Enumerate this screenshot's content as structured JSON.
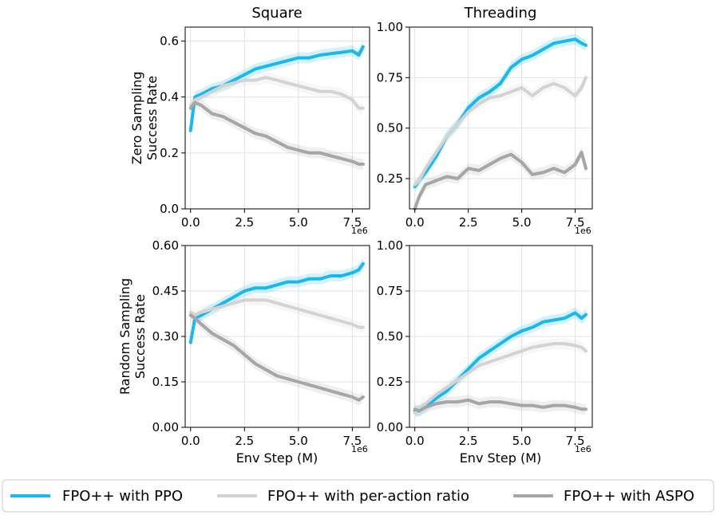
{
  "colors": {
    "ppo": "#18b8f0",
    "per_action": "#d3d3d3",
    "aspo": "#a6a6a6"
  },
  "chart_data": [
    {
      "id": "zero-square",
      "type": "line",
      "title": "Square",
      "ylabel": "Zero Sampling Success Rate",
      "xlabel": "",
      "x_offset_label": "1e6",
      "xlim": [
        -0.25,
        8.3
      ],
      "ylim": [
        0.0,
        0.65
      ],
      "xticks": [
        0.0,
        2.5,
        5.0,
        7.5
      ],
      "xtick_labels": [
        "0.0",
        "2.5",
        "5.0",
        "7.5"
      ],
      "yticks": [
        0.0,
        0.2,
        0.4,
        0.6
      ],
      "ytick_labels": [
        "0.0",
        "0.2",
        "0.4",
        "0.6"
      ],
      "x": [
        0.0,
        0.2,
        0.5,
        1.0,
        1.5,
        2.0,
        2.5,
        3.0,
        3.5,
        4.0,
        4.5,
        5.0,
        5.5,
        6.0,
        6.5,
        7.0,
        7.5,
        7.8,
        8.0
      ],
      "series": [
        {
          "name": "FPO++ with PPO",
          "values": [
            0.28,
            0.4,
            0.41,
            0.43,
            0.44,
            0.46,
            0.48,
            0.5,
            0.51,
            0.52,
            0.53,
            0.54,
            0.54,
            0.55,
            0.555,
            0.56,
            0.565,
            0.55,
            0.58
          ]
        },
        {
          "name": "FPO++ with per-action ratio",
          "values": [
            0.37,
            0.39,
            0.4,
            0.42,
            0.44,
            0.45,
            0.46,
            0.46,
            0.47,
            0.46,
            0.45,
            0.44,
            0.43,
            0.42,
            0.42,
            0.41,
            0.39,
            0.36,
            0.36
          ]
        },
        {
          "name": "FPO++ with ASPO",
          "values": [
            0.36,
            0.38,
            0.37,
            0.34,
            0.33,
            0.31,
            0.29,
            0.27,
            0.26,
            0.24,
            0.22,
            0.21,
            0.2,
            0.2,
            0.19,
            0.18,
            0.17,
            0.16,
            0.16
          ]
        }
      ]
    },
    {
      "id": "zero-threading",
      "type": "line",
      "title": "Threading",
      "ylabel": "",
      "xlabel": "",
      "x_offset_label": "1e6",
      "xlim": [
        -0.25,
        8.3
      ],
      "ylim": [
        0.1,
        1.0
      ],
      "xticks": [
        0.0,
        2.5,
        5.0,
        7.5
      ],
      "xtick_labels": [
        "0.0",
        "2.5",
        "5.0",
        "7.5"
      ],
      "yticks": [
        0.25,
        0.5,
        0.75,
        1.0
      ],
      "ytick_labels": [
        "0.25",
        "0.50",
        "0.75",
        "1.00"
      ],
      "x": [
        0.0,
        0.2,
        0.5,
        1.0,
        1.5,
        2.0,
        2.5,
        3.0,
        3.5,
        4.0,
        4.5,
        5.0,
        5.5,
        6.0,
        6.5,
        7.0,
        7.5,
        7.8,
        8.0
      ],
      "series": [
        {
          "name": "FPO++ with PPO",
          "values": [
            0.21,
            0.24,
            0.28,
            0.36,
            0.46,
            0.52,
            0.6,
            0.65,
            0.68,
            0.72,
            0.8,
            0.84,
            0.86,
            0.89,
            0.92,
            0.93,
            0.94,
            0.92,
            0.91
          ]
        },
        {
          "name": "FPO++ with per-action ratio",
          "values": [
            0.22,
            0.24,
            0.3,
            0.38,
            0.46,
            0.52,
            0.58,
            0.62,
            0.65,
            0.66,
            0.68,
            0.7,
            0.66,
            0.7,
            0.72,
            0.7,
            0.66,
            0.7,
            0.75
          ]
        },
        {
          "name": "FPO++ with ASPO",
          "values": [
            0.1,
            0.16,
            0.22,
            0.24,
            0.26,
            0.25,
            0.3,
            0.29,
            0.32,
            0.35,
            0.37,
            0.33,
            0.27,
            0.28,
            0.3,
            0.28,
            0.32,
            0.38,
            0.3
          ]
        }
      ]
    },
    {
      "id": "random-square",
      "type": "line",
      "title": "",
      "ylabel": "Random Sampling Success Rate",
      "xlabel": "Env Step (M)",
      "x_offset_label": "1e6",
      "xlim": [
        -0.25,
        8.3
      ],
      "ylim": [
        0.0,
        0.6
      ],
      "xticks": [
        0.0,
        2.5,
        5.0,
        7.5
      ],
      "xtick_labels": [
        "0.0",
        "2.5",
        "5.0",
        "7.5"
      ],
      "yticks": [
        0.0,
        0.15,
        0.3,
        0.45,
        0.6
      ],
      "ytick_labels": [
        "0.00",
        "0.15",
        "0.30",
        "0.45",
        "0.60"
      ],
      "x": [
        0.0,
        0.2,
        0.5,
        1.0,
        1.5,
        2.0,
        2.5,
        3.0,
        3.5,
        4.0,
        4.5,
        5.0,
        5.5,
        6.0,
        6.5,
        7.0,
        7.5,
        7.8,
        8.0
      ],
      "series": [
        {
          "name": "FPO++ with PPO",
          "values": [
            0.28,
            0.36,
            0.37,
            0.39,
            0.41,
            0.43,
            0.45,
            0.46,
            0.46,
            0.47,
            0.48,
            0.48,
            0.49,
            0.49,
            0.5,
            0.5,
            0.51,
            0.52,
            0.54
          ]
        },
        {
          "name": "FPO++ with per-action ratio",
          "values": [
            0.38,
            0.37,
            0.38,
            0.39,
            0.4,
            0.41,
            0.42,
            0.42,
            0.42,
            0.41,
            0.4,
            0.39,
            0.38,
            0.37,
            0.36,
            0.35,
            0.34,
            0.33,
            0.33
          ]
        },
        {
          "name": "FPO++ with ASPO",
          "values": [
            0.37,
            0.36,
            0.34,
            0.31,
            0.29,
            0.27,
            0.24,
            0.21,
            0.19,
            0.17,
            0.16,
            0.15,
            0.14,
            0.13,
            0.12,
            0.11,
            0.1,
            0.09,
            0.1
          ]
        }
      ]
    },
    {
      "id": "random-threading",
      "type": "line",
      "title": "",
      "ylabel": "",
      "xlabel": "Env Step (M)",
      "x_offset_label": "1e6",
      "xlim": [
        -0.25,
        8.3
      ],
      "ylim": [
        0.0,
        1.0
      ],
      "xticks": [
        0.0,
        2.5,
        5.0,
        7.5
      ],
      "xtick_labels": [
        "0.0",
        "2.5",
        "5.0",
        "7.5"
      ],
      "yticks": [
        0.0,
        0.25,
        0.5,
        0.75,
        1.0
      ],
      "ytick_labels": [
        "0.00",
        "0.25",
        "0.50",
        "0.75",
        "1.00"
      ],
      "x": [
        0.0,
        0.2,
        0.5,
        1.0,
        1.5,
        2.0,
        2.5,
        3.0,
        3.5,
        4.0,
        4.5,
        5.0,
        5.5,
        6.0,
        6.5,
        7.0,
        7.5,
        7.8,
        8.0
      ],
      "series": [
        {
          "name": "FPO++ with PPO",
          "values": [
            0.09,
            0.09,
            0.11,
            0.16,
            0.2,
            0.26,
            0.32,
            0.38,
            0.42,
            0.46,
            0.5,
            0.53,
            0.55,
            0.58,
            0.59,
            0.6,
            0.63,
            0.6,
            0.62
          ]
        },
        {
          "name": "FPO++ with per-action ratio",
          "values": [
            0.08,
            0.1,
            0.13,
            0.18,
            0.22,
            0.26,
            0.3,
            0.34,
            0.36,
            0.38,
            0.4,
            0.42,
            0.44,
            0.45,
            0.46,
            0.46,
            0.45,
            0.44,
            0.42
          ]
        },
        {
          "name": "FPO++ with ASPO",
          "values": [
            0.1,
            0.09,
            0.11,
            0.13,
            0.14,
            0.14,
            0.15,
            0.13,
            0.14,
            0.14,
            0.13,
            0.12,
            0.12,
            0.11,
            0.12,
            0.12,
            0.11,
            0.1,
            0.1
          ]
        }
      ]
    }
  ],
  "legend": {
    "entries": [
      {
        "key": "ppo",
        "label": "FPO++ with PPO"
      },
      {
        "key": "per_action",
        "label": "FPO++ with per-action ratio"
      },
      {
        "key": "aspo",
        "label": "FPO++ with ASPO"
      }
    ]
  }
}
